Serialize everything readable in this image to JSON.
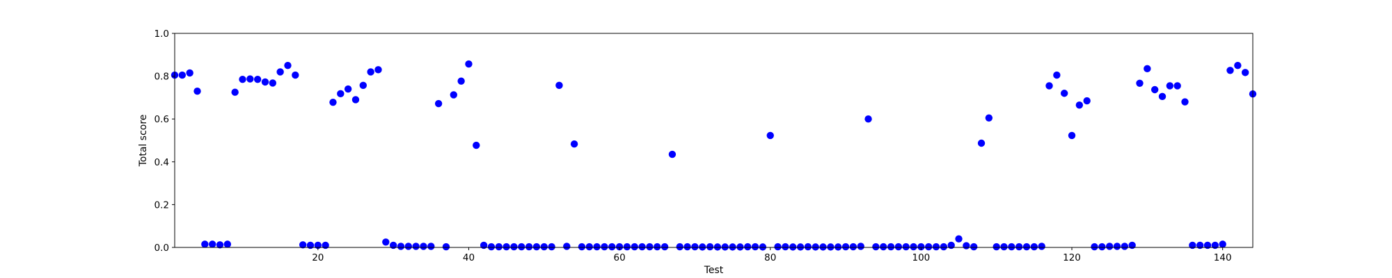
{
  "chart_data": {
    "type": "scatter",
    "title": "",
    "xlabel": "Test",
    "ylabel": "Total score",
    "xlim": [
      1,
      144
    ],
    "ylim": [
      0.0,
      1.0
    ],
    "x_ticks": [
      20,
      40,
      60,
      80,
      100,
      120,
      140
    ],
    "y_ticks": [
      0.0,
      0.2,
      0.4,
      0.6,
      0.8,
      1.0
    ],
    "x_tick_labels": [
      "20",
      "40",
      "60",
      "80",
      "100",
      "120",
      "140"
    ],
    "y_tick_labels": [
      "0.0",
      "0.2",
      "0.4",
      "0.6",
      "0.8",
      "1.0"
    ],
    "grid": false,
    "marker_color": "#0000ff",
    "series": [
      {
        "x": [
          1,
          2,
          3,
          4,
          5,
          6,
          7,
          8,
          9,
          10,
          11,
          12,
          13,
          14,
          15,
          16,
          17,
          18,
          19,
          20,
          21,
          22,
          23,
          24,
          25,
          26,
          27,
          28,
          29,
          30,
          31,
          32,
          33,
          34,
          35,
          36,
          37,
          38,
          39,
          40,
          41,
          42,
          43,
          44,
          45,
          46,
          47,
          48,
          49,
          50,
          51,
          52,
          53,
          54,
          55,
          56,
          57,
          58,
          59,
          60,
          61,
          62,
          63,
          64,
          65,
          66,
          67,
          68,
          69,
          70,
          71,
          72,
          73,
          74,
          75,
          76,
          77,
          78,
          79,
          80,
          81,
          82,
          83,
          84,
          85,
          86,
          87,
          88,
          89,
          90,
          91,
          92,
          93,
          94,
          95,
          96,
          97,
          98,
          99,
          100,
          101,
          102,
          103,
          104,
          105,
          106,
          107,
          108,
          109,
          110,
          111,
          112,
          113,
          114,
          115,
          116,
          117,
          118,
          119,
          120,
          121,
          122,
          123,
          124,
          125,
          126,
          127,
          128,
          129,
          130,
          131,
          132,
          133,
          134,
          135,
          136,
          137,
          138,
          139,
          140,
          141,
          142,
          143,
          144
        ],
        "y": [
          0.805,
          0.805,
          0.815,
          0.73,
          0.015,
          0.015,
          0.012,
          0.015,
          0.725,
          0.785,
          0.787,
          0.785,
          0.773,
          0.768,
          0.82,
          0.85,
          0.805,
          0.012,
          0.01,
          0.01,
          0.01,
          0.678,
          0.718,
          0.74,
          0.69,
          0.757,
          0.82,
          0.83,
          0.025,
          0.01,
          0.005,
          0.005,
          0.005,
          0.005,
          0.005,
          0.672,
          0.003,
          0.713,
          0.777,
          0.857,
          0.477,
          0.01,
          0.003,
          0.003,
          0.003,
          0.003,
          0.003,
          0.003,
          0.003,
          0.003,
          0.003,
          0.757,
          0.005,
          0.483,
          0.003,
          0.003,
          0.003,
          0.003,
          0.003,
          0.003,
          0.003,
          0.003,
          0.003,
          0.003,
          0.003,
          0.003,
          0.435,
          0.003,
          0.003,
          0.003,
          0.002,
          0.003,
          0.002,
          0.002,
          0.002,
          0.002,
          0.003,
          0.003,
          0.002,
          0.523,
          0.003,
          0.003,
          0.002,
          0.002,
          0.003,
          0.002,
          0.002,
          0.002,
          0.002,
          0.003,
          0.003,
          0.005,
          0.6,
          0.003,
          0.003,
          0.003,
          0.003,
          0.003,
          0.003,
          0.003,
          0.003,
          0.003,
          0.003,
          0.01,
          0.04,
          0.008,
          0.003,
          0.487,
          0.605,
          0.003,
          0.003,
          0.003,
          0.003,
          0.003,
          0.003,
          0.005,
          0.755,
          0.805,
          0.72,
          0.523,
          0.665,
          0.685,
          0.003,
          0.003,
          0.005,
          0.005,
          0.005,
          0.01,
          0.767,
          0.835,
          0.737,
          0.705,
          0.755,
          0.755,
          0.68,
          0.01,
          0.01,
          0.01,
          0.01,
          0.015,
          0.827,
          0.85,
          0.817,
          0.717
        ]
      }
    ]
  }
}
